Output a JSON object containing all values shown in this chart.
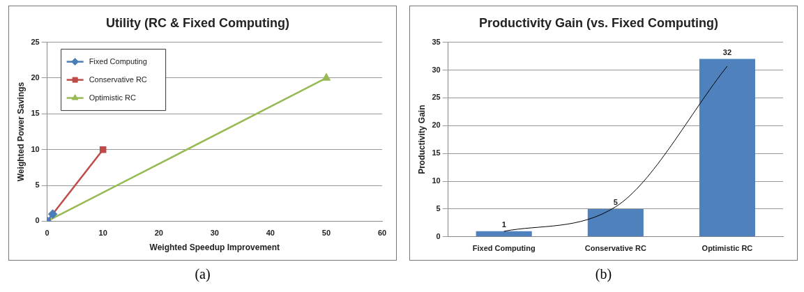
{
  "chart_data": [
    {
      "type": "line",
      "title": "Utility (RC & Fixed Computing)",
      "xlabel": "Weighted Speedup Improvement",
      "ylabel": "Weighted Power Savings",
      "xlim": [
        0,
        60
      ],
      "xticks": [
        0,
        10,
        20,
        30,
        40,
        50,
        60
      ],
      "ylim": [
        0,
        25
      ],
      "yticks": [
        0,
        5,
        10,
        15,
        20,
        25
      ],
      "grid": "y",
      "legend": "top left",
      "line_style": "solid",
      "series": [
        {
          "name": "Fixed Computing",
          "color": "#4a7ebb",
          "marker": "diamond",
          "x": [
            0,
            1
          ],
          "values": [
            0,
            1
          ]
        },
        {
          "name": "Conservative RC",
          "color": "#be4b48",
          "marker": "square",
          "x": [
            0,
            10
          ],
          "values": [
            0,
            10
          ]
        },
        {
          "name": "Optimistic RC",
          "color": "#98b954",
          "marker": "triangle",
          "x": [
            0,
            50
          ],
          "values": [
            0,
            20
          ]
        }
      ],
      "annotations": [
        "(a)"
      ]
    },
    {
      "type": "bar",
      "title": "Productivity Gain (vs. Fixed Computing)",
      "ylabel": "Productivity Gain",
      "categories": [
        "Fixed Computing",
        "Conservative RC",
        "Optimistic RC"
      ],
      "ylim": [
        0,
        35
      ],
      "yticks": [
        0,
        5,
        10,
        15,
        20,
        25,
        30,
        35
      ],
      "grid": "y",
      "series": [
        {
          "color": "#4f81bd",
          "values": [
            1,
            5,
            32
          ],
          "value_labels": [
            "1",
            "5",
            "32"
          ]
        },
        {
          "type": "line",
          "color": "#000000",
          "marker": "none",
          "values": [
            1,
            5.4,
            30.7
          ]
        }
      ],
      "annotations": [
        "(b)"
      ]
    }
  ]
}
